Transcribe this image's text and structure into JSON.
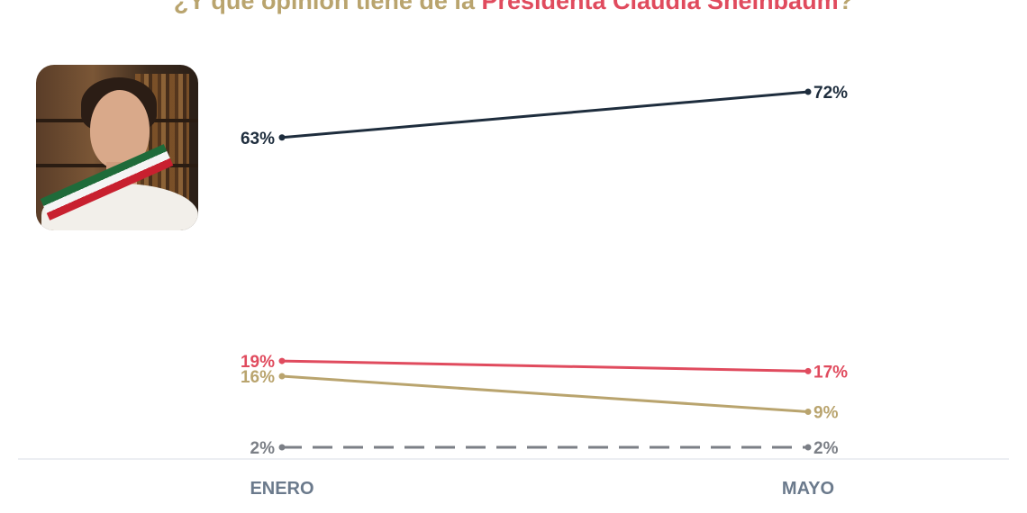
{
  "title": {
    "prefix": "¿Y qué opinión tiene de la ",
    "highlight": "Presidenta Claudia Sheinbaum",
    "suffix": "?"
  },
  "photo": {
    "subject": "Claudia Sheinbaum portrait with presidential sash"
  },
  "chart_data": {
    "type": "line",
    "categories": [
      "ENERO",
      "MAYO"
    ],
    "series": [
      {
        "values": [
          63,
          72
        ],
        "labels": [
          "63%",
          "72%"
        ],
        "color": "#1e2d3d",
        "dashed": false
      },
      {
        "values": [
          19,
          17
        ],
        "labels": [
          "19%",
          "17%"
        ],
        "color": "#e04b5e",
        "dashed": false
      },
      {
        "values": [
          16,
          9
        ],
        "labels": [
          "16%",
          "9%"
        ],
        "color": "#b9a46e",
        "dashed": false
      },
      {
        "values": [
          2,
          2
        ],
        "labels": [
          "2%",
          "2%"
        ],
        "color": "#7b7f86",
        "dashed": true
      }
    ],
    "ylim": [
      0,
      80
    ],
    "grid": false,
    "axis_color": "#6b7a8c"
  }
}
